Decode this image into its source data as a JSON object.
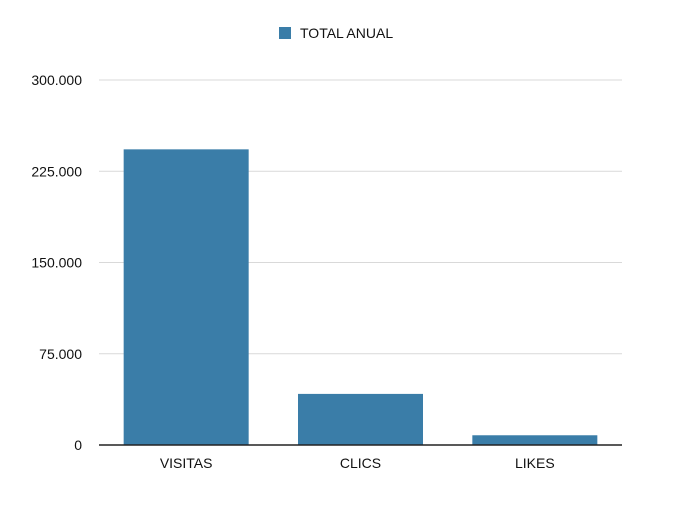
{
  "chart_data": {
    "type": "bar",
    "categories": [
      "VISITAS",
      "CLICS",
      "LIKES"
    ],
    "series": [
      {
        "name": "TOTAL ANUAL",
        "values": [
          243000,
          42000,
          8000
        ],
        "color": "#3a7da8"
      }
    ],
    "ylim": [
      0,
      300000
    ],
    "yticks": [
      0,
      75000,
      150000,
      225000,
      300000
    ],
    "ytick_labels": [
      "0",
      "75.000",
      "150.000",
      "225.000",
      "300.000"
    ],
    "grid": true,
    "legend_position": "top-center",
    "title": "",
    "xlabel": "",
    "ylabel": ""
  }
}
